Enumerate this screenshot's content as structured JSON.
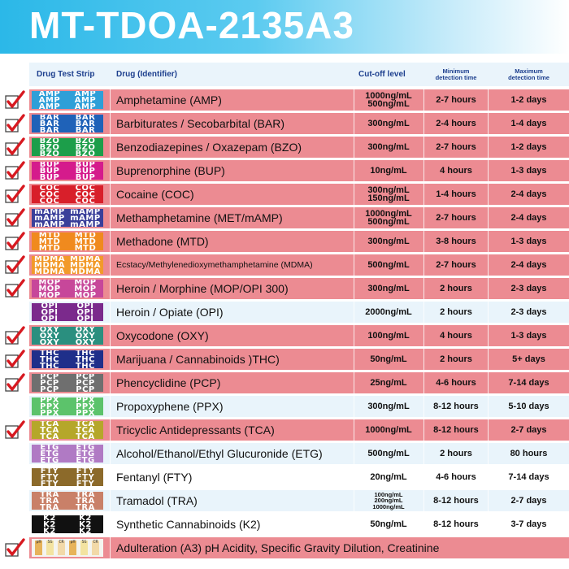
{
  "title": "MT-TDOA-2135A3",
  "headers": {
    "strip": "Drug Test Strip",
    "drug": "Drug (Identifier)",
    "cutoff": "Cut-off level",
    "min_line1": "Minimum",
    "min_line2": "detection time",
    "max_line1": "Maximum",
    "max_line2": "detection time"
  },
  "rows": [
    {
      "code": "AMP",
      "strip_color": "#2e9fd8",
      "drug": "Amphetamine (AMP)",
      "cutoff": [
        "1000ng/mL",
        "500ng/mL"
      ],
      "min": "2-7 hours",
      "max": "1-2 days",
      "checked": true
    },
    {
      "code": "BAR",
      "strip_color": "#1f62b8",
      "drug": "Barbiturates / Secobarbital (BAR)",
      "cutoff": [
        "300ng/mL"
      ],
      "min": "2-4 hours",
      "max": "1-4 days",
      "checked": true
    },
    {
      "code": "BZO",
      "strip_color": "#1c9e4a",
      "drug": "Benzodiazepines / Oxazepam (BZO)",
      "cutoff": [
        "300ng/mL"
      ],
      "min": "2-7 hours",
      "max": "1-2 days",
      "checked": true
    },
    {
      "code": "BUP",
      "strip_color": "#d51b8c",
      "drug": "Buprenorphine (BUP)",
      "cutoff": [
        "10ng/mL"
      ],
      "min": "4 hours",
      "max": "1-3 days",
      "checked": true
    },
    {
      "code": "COC",
      "strip_color": "#d81f2a",
      "drug": "Cocaine (COC)",
      "cutoff": [
        "300ng/mL",
        "150ng/mL"
      ],
      "min": "1-4 hours",
      "max": "2-4 days",
      "checked": true
    },
    {
      "code": "mAMP",
      "strip_color": "#3a3f9a",
      "drug": "Methamphetamine (MET/mAMP)",
      "cutoff": [
        "1000ng/mL",
        "500ng/mL"
      ],
      "min": "2-7 hours",
      "max": "2-4 days",
      "checked": true
    },
    {
      "code": "MTD",
      "strip_color": "#f08a1e",
      "drug": "Methadone (MTD)",
      "cutoff": [
        "300ng/mL"
      ],
      "min": "3-8 hours",
      "max": "1-3 days",
      "checked": true
    },
    {
      "code": "MDMA",
      "strip_color": "#f29a2a",
      "drug": "Ecstacy/Methylenedioxymethamphetamine (MDMA)",
      "cutoff": [
        "500ng/mL"
      ],
      "min": "2-7 hours",
      "max": "2-4 days",
      "checked": true,
      "small": true
    },
    {
      "code": "MOP",
      "strip_color": "#c7479a",
      "drug": "Heroin / Morphine (MOP/OPI 300)",
      "cutoff": [
        "300ng/mL"
      ],
      "min": "2 hours",
      "max": "2-3 days",
      "checked": true
    },
    {
      "code": "OPI",
      "strip_color": "#7b2a8c",
      "drug": "Heroin / Opiate (OPI)",
      "cutoff": [
        "2000ng/mL"
      ],
      "min": "2 hours",
      "max": "2-3 days",
      "checked": false
    },
    {
      "code": "OXY",
      "strip_color": "#2a8f7f",
      "drug": "Oxycodone (OXY)",
      "cutoff": [
        "100ng/mL"
      ],
      "min": "4 hours",
      "max": "1-3 days",
      "checked": true
    },
    {
      "code": "THC",
      "strip_color": "#1f2f8a",
      "drug": "Marijuana / Cannabinoids )THC)",
      "cutoff": [
        "50ng/mL"
      ],
      "min": "2 hours",
      "max": "5+ days",
      "checked": true
    },
    {
      "code": "PCP",
      "strip_color": "#6f6f6f",
      "drug": "Phencyclidine (PCP)",
      "cutoff": [
        "25ng/mL"
      ],
      "min": "4-6 hours",
      "max": "7-14 days",
      "checked": true
    },
    {
      "code": "PPX",
      "strip_color": "#5cc36b",
      "drug": "Propoxyphene (PPX)",
      "cutoff": [
        "300ng/mL"
      ],
      "min": "8-12 hours",
      "max": "5-10 days",
      "checked": false
    },
    {
      "code": "TCA",
      "strip_color": "#b5a72a",
      "drug": "Tricyclic Antidepressants (TCA)",
      "cutoff": [
        "1000ng/mL"
      ],
      "min": "8-12 hours",
      "max": "2-7 days",
      "checked": true
    },
    {
      "code": "ETG",
      "strip_color": "#b07ac4",
      "drug": "Alcohol/Ethanol/Ethyl Glucuronide (ETG)",
      "cutoff": [
        "500ng/mL"
      ],
      "min": "2 hours",
      "max": "80 hours",
      "checked": false
    },
    {
      "code": "FTY",
      "strip_color": "#8c6a2a",
      "drug": "Fentanyl (FTY)",
      "cutoff": [
        "20ng/mL"
      ],
      "min": "4-6 hours",
      "max": "7-14 days",
      "checked": false
    },
    {
      "code": "TRA",
      "strip_color": "#c98068",
      "drug": "Tramadol (TRA)",
      "cutoff": [
        "100ng/mL",
        "200ng/mL",
        "1000ng/mL"
      ],
      "min": "8-12 hours",
      "max": "2-7 days",
      "checked": false
    },
    {
      "code": "K2",
      "strip_color": "#111111",
      "drug": "Synthetic Cannabinoids (K2)",
      "cutoff": [
        "50ng/mL"
      ],
      "min": "8-12 hours",
      "max": "3-7 days",
      "checked": false
    }
  ],
  "adulteration": {
    "drug": "Adulteration (A3) pH Acidity, Specific Gravity Dilution, Creatinine",
    "checked": true,
    "pads": [
      "pH",
      "SG",
      "CR",
      "pH",
      "SG",
      "CR"
    ]
  },
  "colors": {
    "checked_row": "#ec8b92",
    "unchecked_row_a": "#ffffff",
    "unchecked_row_b": "#e9f4fb",
    "check_mark": "#d71920",
    "header_text": "#1d3f8e"
  }
}
